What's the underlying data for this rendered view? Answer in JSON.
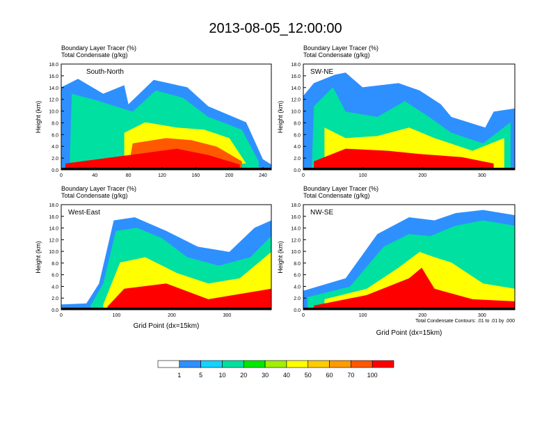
{
  "title": "2013-08-05_12:00:00",
  "panel_header": {
    "line1_name": "Boundary Layer Tracer",
    "line1_unit": "(%)",
    "line2_name": "Total Condensate",
    "line2_unit": "(g/kg)"
  },
  "ylabel": "Height (km)",
  "xlabel": "Grid Point (dx=15km)",
  "contour_note": "Total Condensate Contours: .01 to .01 by .000",
  "colorbar": {
    "levels": [
      "1",
      "5",
      "10",
      "20",
      "30",
      "40",
      "50",
      "60",
      "70",
      "100"
    ],
    "colors": [
      "#ffffff",
      "#2e90ff",
      "#14d2ff",
      "#00e0a0",
      "#00e800",
      "#a0f000",
      "#ffff00",
      "#ffcc00",
      "#ff9a00",
      "#ff5800",
      "#ff0000"
    ]
  },
  "chart_data": [
    {
      "type": "heatmap",
      "name": "South-North",
      "ylim": [
        0,
        18
      ],
      "yticks": [
        "0.0",
        "2.0",
        "4.0",
        "6.0",
        "8.0",
        "10.0",
        "12.0",
        "14.0",
        "16.0",
        "18.0"
      ],
      "xlim": [
        0,
        250
      ],
      "xticks": [
        0,
        40,
        80,
        120,
        160,
        200,
        240
      ],
      "show_xlabel": false
    },
    {
      "type": "heatmap",
      "name": "SW-NE",
      "ylim": [
        0,
        18
      ],
      "yticks": [
        "0.0",
        "2.0",
        "4.0",
        "6.0",
        "8.0",
        "10.0",
        "12.0",
        "14.0",
        "16.0",
        "18.0"
      ],
      "xlim": [
        0,
        355
      ],
      "xticks": [
        0,
        100,
        200,
        300
      ],
      "show_xlabel": false
    },
    {
      "type": "heatmap",
      "name": "West-East",
      "ylim": [
        0,
        18
      ],
      "yticks": [
        "0.0",
        "2.0",
        "4.0",
        "6.0",
        "8.0",
        "10.0",
        "12.0",
        "14.0",
        "16.0",
        "18.0"
      ],
      "xlim": [
        0,
        380
      ],
      "xticks": [
        0,
        100,
        200,
        300
      ],
      "show_xlabel": true
    },
    {
      "type": "heatmap",
      "name": "NW-SE",
      "ylim": [
        0,
        18
      ],
      "yticks": [
        "0.0",
        "2.0",
        "4.0",
        "6.0",
        "8.0",
        "10.0",
        "12.0",
        "14.0",
        "16.0",
        "18.0"
      ],
      "xlim": [
        0,
        355
      ],
      "xticks": [
        0,
        100,
        200,
        300
      ],
      "show_xlabel": true
    }
  ]
}
